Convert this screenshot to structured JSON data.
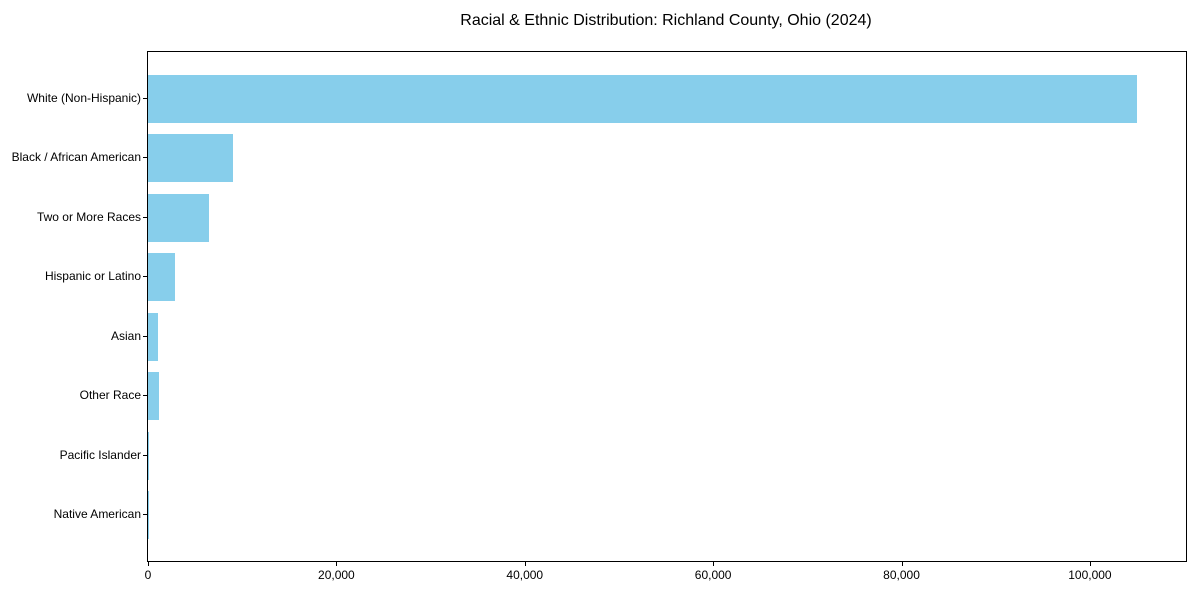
{
  "page": {
    "background": "#ffffff",
    "text_color": "#000000",
    "spine_color": "#000000"
  },
  "chart_data": {
    "type": "bar",
    "orientation": "horizontal",
    "title": "Racial & Ethnic Distribution: Richland County, Ohio (2024)",
    "categories": [
      "White (Non-Hispanic)",
      "Black / African American",
      "Two or More Races",
      "Hispanic or Latino",
      "Asian",
      "Other Race",
      "Pacific Islander",
      "Native American"
    ],
    "values": [
      105000,
      9000,
      6450,
      2900,
      1050,
      1200,
      100,
      40
    ],
    "bar_color": "#87CEEB",
    "xlabel": "",
    "ylabel": "",
    "xlim": [
      0,
      110200
    ],
    "x_ticks": [
      0,
      20000,
      40000,
      60000,
      80000,
      100000
    ],
    "x_tick_labels": [
      "0",
      "20,000",
      "40,000",
      "60,000",
      "80,000",
      "100,000"
    ],
    "grid": false,
    "legend": "none"
  }
}
